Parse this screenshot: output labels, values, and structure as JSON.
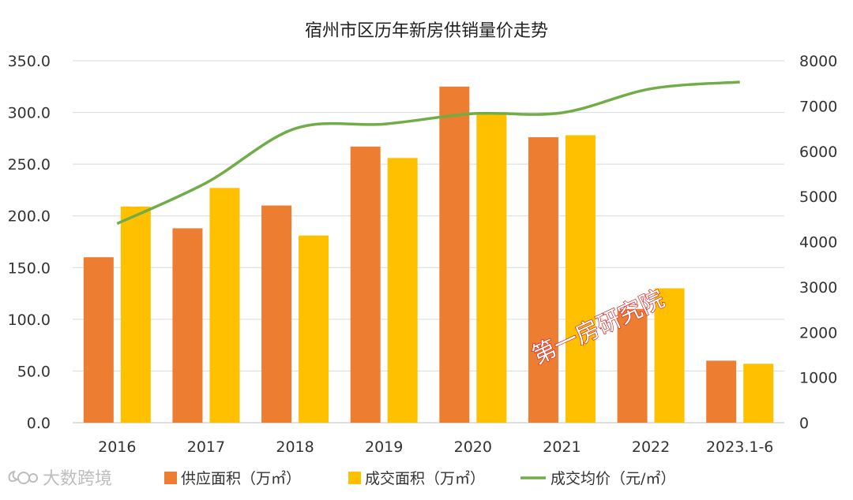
{
  "chart_data": {
    "type": "bar",
    "title": "宿州市区历年新房供销量价走势",
    "categories": [
      "2016",
      "2017",
      "2018",
      "2019",
      "2020",
      "2021",
      "2022",
      "2023.1-6"
    ],
    "series": [
      {
        "name": "供应面积（万㎡）",
        "type": "bar",
        "axis": "left",
        "color": "#ED7D31",
        "values": [
          160,
          188,
          210,
          267,
          325,
          276,
          110,
          60
        ]
      },
      {
        "name": "成交面积（万㎡）",
        "type": "bar",
        "axis": "left",
        "color": "#FFC000",
        "values": [
          209,
          227,
          181,
          256,
          300,
          278,
          130,
          57
        ]
      },
      {
        "name": "成交均价（元/㎡）",
        "type": "line",
        "axis": "right",
        "color": "#70AD47",
        "values": [
          4400,
          5300,
          6500,
          6600,
          6830,
          6850,
          7380,
          7530
        ]
      }
    ],
    "y_left": {
      "min": 0,
      "max": 350,
      "ticks": [
        "0.0",
        "50.0",
        "100.0",
        "150.0",
        "200.0",
        "250.0",
        "300.0",
        "350.0"
      ]
    },
    "y_right": {
      "min": 0,
      "max": 8000,
      "ticks": [
        "0",
        "1000",
        "2000",
        "3000",
        "4000",
        "5000",
        "6000",
        "7000",
        "8000"
      ]
    },
    "grid": true,
    "legend_position": "bottom"
  },
  "watermark": {
    "text": "大数跨境"
  },
  "stamp": {
    "text": "第一房研究院"
  }
}
